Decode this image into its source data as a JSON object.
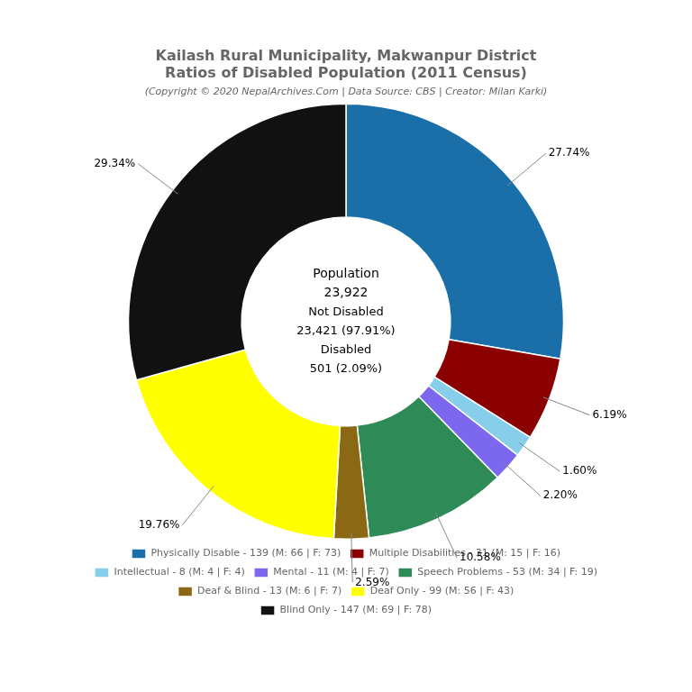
{
  "chart_data": {
    "type": "doughnut",
    "title": [
      "Kailash Rural Municipality, Makwanpur District",
      "Ratios of Disabled Population (2011 Census)"
    ],
    "subtitle": "(Copyright © 2020 NepalArchives.Com | Data Source: CBS | Creator: Milan Karki)",
    "categories": [
      "Physically Disable - 139 (M: 66 | F: 73)",
      "Multiple Disabilities - 31 (M: 15 | F: 16)",
      "Intellectual - 8 (M: 4 | F: 4)",
      "Mental - 11 (M: 4 | F: 7)",
      "Speech Problems - 53 (M: 34 | F: 19)",
      "Deaf & Blind - 13 (M: 6 | F: 7)",
      "Deaf Only - 99 (M: 56 | F: 43)",
      "Blind Only - 147 (M: 69 | F: 78)"
    ],
    "values": [
      27.74,
      6.19,
      1.6,
      2.2,
      10.58,
      2.59,
      19.76,
      29.34
    ],
    "value_labels": [
      "27.74%",
      "6.19%",
      "1.60%",
      "2.20%",
      "10.58%",
      "2.59%",
      "19.76%",
      "29.34%"
    ],
    "colors": [
      "#1a6fa8",
      "#8b0000",
      "#87ceeb",
      "#7b68ee",
      "#2e8b57",
      "#8b6914",
      "#ffff00",
      "#111111"
    ],
    "data_labels": true,
    "legend": "bottom",
    "annotations": [
      "Population",
      "23,922",
      "Not Disabled",
      "23,421 (97.91%)",
      "Disabled",
      "501 (2.09%)"
    ]
  }
}
